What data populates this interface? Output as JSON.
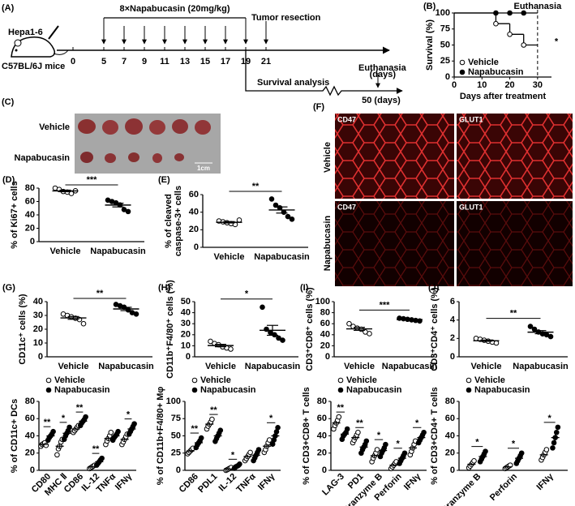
{
  "timeline": {
    "label": "(A)",
    "cell_line": "Hepa1-6",
    "mouse": "C57BL/6J mice",
    "treatment": "8×Napabucasin (20mg/kg)",
    "days": [
      0,
      5,
      7,
      9,
      11,
      13,
      15,
      17,
      19,
      21
    ],
    "resection": "Tumor resection",
    "days_unit": "(days)",
    "survival": "Survival analysis",
    "euthanasia": "Euthanasia",
    "end": "50 (days)"
  },
  "photo": {
    "label": "(C)",
    "rows": [
      "Vehicle",
      "Napabucasin"
    ],
    "scale": "1cm"
  },
  "fluorescence": {
    "label": "(F)",
    "rows": [
      "Vehicle",
      "Napabucasin"
    ],
    "stains": [
      "CD47",
      "GLUT1"
    ]
  },
  "chart_data": [
    {
      "type": "step",
      "label": "(B)",
      "ylabel": "Survival (%)",
      "xlabel": "Days after treatment",
      "annotation": "Euthanasia",
      "significance": "*",
      "xlim": [
        0,
        35
      ],
      "xticks": [
        0,
        10,
        20,
        30
      ],
      "ylim": [
        0,
        100
      ],
      "yticks": [
        0,
        25,
        50,
        75,
        100
      ],
      "series": [
        {
          "name": "Vehicle",
          "marker": "open",
          "color": "#000000",
          "x": [
            0,
            15,
            20,
            25,
            30
          ],
          "values": [
            100,
            83.3,
            66.7,
            50,
            50
          ]
        },
        {
          "name": "Napabucasin",
          "marker": "filled",
          "color": "#000000",
          "x": [
            0,
            15,
            20,
            25,
            30
          ],
          "values": [
            100,
            100,
            100,
            100,
            100
          ]
        }
      ]
    },
    {
      "type": "dot",
      "label": "(D)",
      "ylabel": "% of Ki67+ cells",
      "categories": [
        "Vehicle",
        "Napabucasin"
      ],
      "ylim": [
        0,
        80
      ],
      "yticks": [
        0,
        20,
        40,
        60,
        80
      ],
      "values": [
        [
          80,
          78,
          75,
          74,
          72,
          76
        ],
        [
          62,
          60,
          58,
          55,
          48,
          45
        ]
      ],
      "means": [
        75.8,
        54.7
      ],
      "sems": [
        1.2,
        2.8
      ],
      "significance": "***"
    },
    {
      "type": "dot",
      "label": "(E)",
      "ylabel": [
        "% of cleaved",
        "caspase-3+ cells"
      ],
      "categories": [
        "Vehicle",
        "Napabucasin"
      ],
      "ylim": [
        0,
        60
      ],
      "yticks": [
        0,
        20,
        40,
        60
      ],
      "values": [
        [
          30,
          29,
          28,
          27,
          26,
          31
        ],
        [
          55,
          48,
          45,
          40,
          35,
          32
        ]
      ],
      "means": [
        28.5,
        42.5
      ],
      "sems": [
        0.8,
        3.5
      ],
      "significance": "**"
    },
    {
      "type": "dot",
      "label": "(G)",
      "ylabel": "CD11c⁺ cells (%)",
      "categories": [
        "Vehicle",
        "Napabucasin"
      ],
      "ylim": [
        0,
        40
      ],
      "yticks": [
        0,
        10,
        20,
        30,
        40
      ],
      "values": [
        [
          31,
          30,
          29,
          28,
          27,
          24
        ],
        [
          38,
          37,
          36,
          34,
          32,
          31
        ]
      ],
      "means": [
        28.2,
        34.7
      ],
      "sems": [
        1,
        1.2
      ],
      "significance": "**"
    },
    {
      "type": "dot",
      "label": "(H)",
      "ylabel": "CD11b⁺F4/80⁺ cells (%)",
      "categories": [
        "Vehicle",
        "Napabucasin"
      ],
      "ylim": [
        0,
        50
      ],
      "yticks": [
        0,
        10,
        20,
        30,
        40,
        50
      ],
      "values": [
        [
          14,
          12,
          11,
          9,
          8,
          7
        ],
        [
          45,
          25,
          22,
          20,
          17,
          15
        ]
      ],
      "means": [
        10.2,
        24
      ],
      "sems": [
        1.1,
        4.5
      ],
      "significance": "*"
    },
    {
      "type": "dot",
      "label": "(I)",
      "ylabel": "CD3⁺CD8⁺ cells (%)",
      "categories": [
        "Vehicle",
        "Napabucasin"
      ],
      "ylim": [
        0,
        100
      ],
      "yticks": [
        0,
        20,
        40,
        60,
        80,
        100
      ],
      "values": [
        [
          60,
          55,
          52,
          50,
          45,
          42
        ],
        [
          70,
          69,
          68,
          67,
          66,
          65
        ]
      ],
      "means": [
        50.7,
        67.5
      ],
      "sems": [
        2.7,
        0.8
      ],
      "significance": "***"
    },
    {
      "type": "dot",
      "label": "(J)",
      "ylabel": "CD3⁺CD4⁺ cells (%)",
      "categories": [
        "Vehicle",
        "Napabucasin"
      ],
      "ylim": [
        0,
        6
      ],
      "yticks": [
        0,
        2,
        4,
        6
      ],
      "values": [
        [
          2,
          1.9,
          1.8,
          1.7,
          1.6,
          1.5
        ],
        [
          3.3,
          3,
          2.7,
          2.5,
          2.4,
          2.2
        ]
      ],
      "means": [
        1.75,
        2.68
      ],
      "sems": [
        0.07,
        0.17
      ],
      "significance": "**"
    },
    {
      "type": "grouped_dot",
      "ylabel": "% of CD11c+ DCs",
      "categories": [
        "CD80",
        "MHC Ⅱ",
        "CD86",
        "IL-12",
        "TNFα",
        "IFNγ"
      ],
      "ylim": [
        0,
        80
      ],
      "yticks": [
        0,
        20,
        40,
        60,
        80
      ],
      "significance": [
        "**",
        "*",
        "**",
        "**",
        null,
        "*"
      ],
      "series": [
        {
          "name": "Vehicle",
          "marker": "open",
          "values": [
            [
              28,
              30,
              31,
              32,
              29
            ],
            [
              18,
              25,
              28,
              33,
              36
            ],
            [
              44,
              46,
              48,
              50,
              52
            ],
            [
              2,
              3,
              4,
              5,
              6
            ],
            [
              30,
              34,
              37,
              40,
              44
            ],
            [
              30,
              33,
              36,
              39,
              42
            ]
          ],
          "means": [
            30,
            28,
            48,
            4,
            37,
            36
          ],
          "sems": [
            1,
            3,
            1.5,
            0.7,
            2.5,
            2
          ]
        },
        {
          "name": "Napabucasin",
          "marker": "filled",
          "values": [
            [
              35,
              38,
              40,
              42,
              45
            ],
            [
              36,
              40,
              43,
              46,
              50
            ],
            [
              52,
              55,
              57,
              59,
              62
            ],
            [
              6,
              8,
              10,
              12,
              14
            ],
            [
              35,
              38,
              40,
              42,
              45
            ],
            [
              42,
              45,
              48,
              51,
              54
            ]
          ],
          "means": [
            40,
            43,
            57,
            10,
            40,
            48
          ],
          "sems": [
            1.7,
            2.4,
            1.7,
            1.4,
            1.7,
            2.1
          ]
        }
      ]
    },
    {
      "type": "grouped_dot",
      "ylabel": "% of CD11b+F4/80+ Mφ",
      "categories": [
        "CD86",
        "PDL1",
        "IL-12",
        "TNFα",
        "IFNγ"
      ],
      "ylim": [
        0,
        100
      ],
      "yticks": [
        0,
        25,
        50,
        75,
        100
      ],
      "significance": [
        "**",
        "**",
        "*",
        null,
        "*"
      ],
      "series": [
        {
          "name": "Vehicle",
          "marker": "open",
          "values": [
            [
              24,
              26,
              28,
              30,
              32
            ],
            [
              60,
              64,
              67,
              70,
              74
            ],
            [
              0,
              1,
              2,
              3,
              4
            ],
            [
              14,
              17,
              20,
              23,
              26
            ],
            [
              26,
              30,
              35,
              40,
              44
            ]
          ],
          "means": [
            28,
            67,
            2,
            20,
            35
          ],
          "sems": [
            1.4,
            2.4,
            0.7,
            2.1,
            3.3
          ]
        },
        {
          "name": "Napabucasin",
          "marker": "filled",
          "values": [
            [
              33,
              37,
              40,
              43,
              47
            ],
            [
              42,
              46,
              50,
              54,
              58
            ],
            [
              3,
              5,
              6,
              7,
              9
            ],
            [
              14,
              18,
              22,
              26,
              30
            ],
            [
              38,
              44,
              50,
              56,
              62
            ]
          ],
          "means": [
            40,
            50,
            6,
            22,
            50
          ],
          "sems": [
            2.4,
            2.8,
            1,
            2.8,
            4.2
          ]
        }
      ]
    },
    {
      "type": "grouped_dot",
      "ylabel": "% of CD3+CD8+ T cells",
      "categories": [
        "LAG-3",
        "PD1",
        "Granzyme B",
        "Perforin",
        "IFNγ"
      ],
      "ylim": [
        0,
        80
      ],
      "yticks": [
        0,
        20,
        40,
        60,
        80
      ],
      "significance": [
        "**",
        "**",
        "*",
        "*",
        "*"
      ],
      "series": [
        {
          "name": "Vehicle",
          "marker": "open",
          "values": [
            [
              48,
              52,
              55,
              58,
              62
            ],
            [
              32,
              35,
              38,
              41,
              44
            ],
            [
              10,
              14,
              17,
              20,
              24
            ],
            [
              2,
              4,
              6,
              8,
              10
            ],
            [
              18,
              22,
              26,
              30,
              34
            ]
          ],
          "means": [
            55,
            38,
            17,
            6,
            26
          ],
          "sems": [
            2.4,
            2.1,
            2.4,
            1.4,
            2.8
          ]
        },
        {
          "name": "Napabucasin",
          "marker": "filled",
          "values": [
            [
              36,
              40,
              42,
              44,
              48
            ],
            [
              20,
              24,
              27,
              30,
              34
            ],
            [
              16,
              20,
              23,
              26,
              30
            ],
            [
              8,
              11,
              14,
              17,
              20
            ],
            [
              32,
              35,
              38,
              41,
              44
            ]
          ],
          "means": [
            42,
            27,
            23,
            14,
            38
          ],
          "sems": [
            2,
            2.4,
            2.4,
            2.1,
            2.1
          ]
        }
      ]
    },
    {
      "type": "grouped_dot",
      "ylabel": "% of CD3+CD4+ T cells",
      "categories": [
        "Granzyme B",
        "Perforin",
        "IFNγ"
      ],
      "ylim": [
        0,
        80
      ],
      "yticks": [
        0,
        20,
        40,
        60,
        80
      ],
      "significance": [
        "*",
        "*",
        "*"
      ],
      "series": [
        {
          "name": "Vehicle",
          "marker": "open",
          "values": [
            [
              3,
              5,
              7,
              9,
              11
            ],
            [
              2,
              3,
              4,
              5,
              6
            ],
            [
              12,
              15,
              18,
              21,
              24
            ]
          ],
          "means": [
            7,
            4,
            18
          ],
          "sems": [
            1.4,
            0.7,
            2.1
          ]
        },
        {
          "name": "Napabucasin",
          "marker": "filled",
          "values": [
            [
              10,
              13,
              16,
              19,
              22
            ],
            [
              8,
              11,
              14,
              17,
              20
            ],
            [
              26,
              32,
              38,
              44,
              50
            ]
          ],
          "means": [
            16,
            14,
            38
          ],
          "sems": [
            2.1,
            2.1,
            4.2
          ]
        }
      ]
    }
  ]
}
